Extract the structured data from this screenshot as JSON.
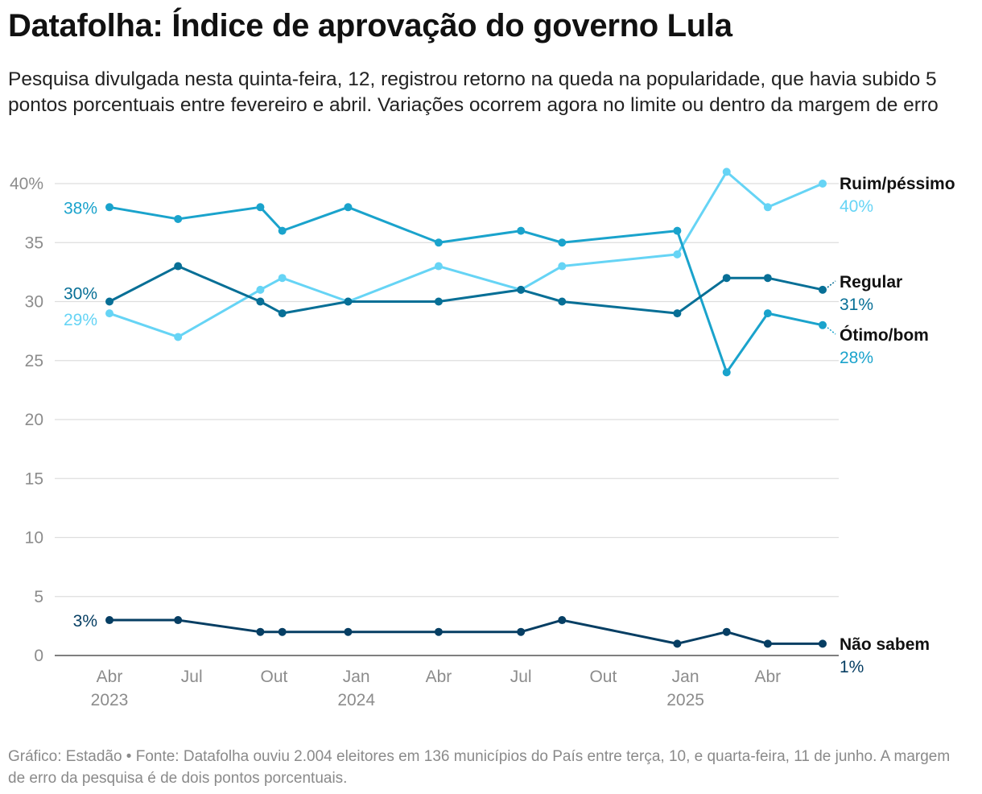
{
  "title": "Datafolha: Índice de aprovação do governo Lula",
  "subtitle": "Pesquisa divulgada nesta quinta-feira, 12, registrou retorno na queda na popularidade, que havia subido 5 pontos porcentuais entre fevereiro e abril. Variações ocorrem agora no limite ou dentro da margem de erro",
  "footer": "Gráfico: Estadão • Fonte: Datafolha ouviu 2.004 eleitores em 136 municípios do País entre terça, 10, e quarta-feira, 11 de junho. A margem de erro da pesquisa é de dois pontos porcentuais.",
  "chart_data": {
    "type": "line",
    "x_unit": "months since Jan 2023",
    "x": [
      3,
      5.5,
      8.5,
      9.3,
      11.7,
      15,
      18,
      19.5,
      23.7,
      25.5,
      27,
      29
    ],
    "ylim": [
      0,
      40
    ],
    "xlim": [
      2,
      29.7
    ],
    "y_ticks": [
      {
        "value": 0,
        "label": "0"
      },
      {
        "value": 5,
        "label": "5"
      },
      {
        "value": 10,
        "label": "10"
      },
      {
        "value": 15,
        "label": "15"
      },
      {
        "value": 20,
        "label": "20"
      },
      {
        "value": 25,
        "label": "25"
      },
      {
        "value": 30,
        "label": "30"
      },
      {
        "value": 35,
        "label": "35"
      },
      {
        "value": 40,
        "label": "40%"
      }
    ],
    "x_ticks": [
      {
        "value": 3,
        "label": "Abr",
        "year": "2023"
      },
      {
        "value": 6,
        "label": "Jul",
        "year": ""
      },
      {
        "value": 9,
        "label": "Out",
        "year": ""
      },
      {
        "value": 12,
        "label": "Jan",
        "year": "2024"
      },
      {
        "value": 15,
        "label": "Abr",
        "year": ""
      },
      {
        "value": 18,
        "label": "Jul",
        "year": ""
      },
      {
        "value": 21,
        "label": "Out",
        "year": ""
      },
      {
        "value": 24,
        "label": "Jan",
        "year": "2025"
      },
      {
        "value": 27,
        "label": "Abr",
        "year": ""
      }
    ],
    "series": [
      {
        "name": "Ruim/péssimo",
        "color": "#66d4f5",
        "values": [
          29,
          27,
          31,
          32,
          30,
          33,
          31,
          33,
          34,
          41,
          38,
          40
        ],
        "start_label": "29%",
        "end_label": "40%"
      },
      {
        "name": "Ótimo/bom",
        "color": "#1aa3cc",
        "values": [
          38,
          37,
          38,
          36,
          38,
          35,
          36,
          35,
          36,
          24,
          29,
          28
        ],
        "start_label": "38%",
        "end_label": "28%"
      },
      {
        "name": "Regular",
        "color": "#076f96",
        "values": [
          30,
          33,
          30,
          29,
          30,
          30,
          31,
          30,
          29,
          32,
          32,
          31
        ],
        "start_label": "30%",
        "end_label": "31%"
      },
      {
        "name": "Não sabem",
        "color": "#063e63",
        "values": [
          3,
          3,
          2,
          2,
          2,
          2,
          2,
          3,
          1,
          2,
          1,
          1
        ],
        "start_label": "3%",
        "end_label": "1%"
      }
    ]
  }
}
